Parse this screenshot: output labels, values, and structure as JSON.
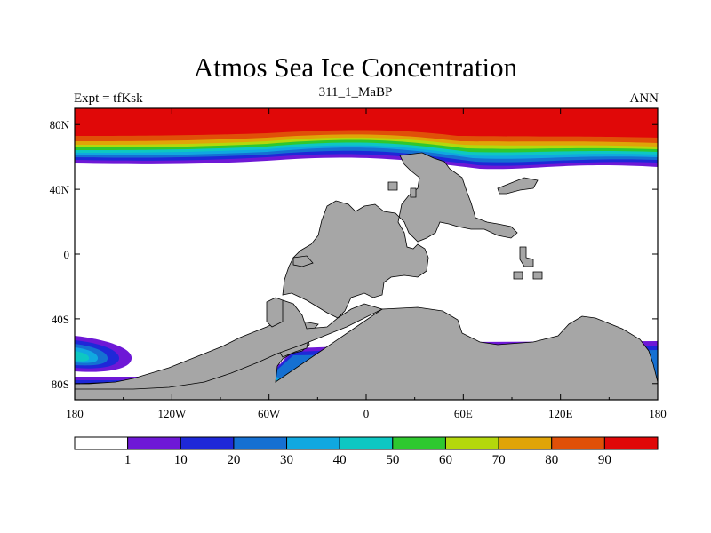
{
  "title": "Atmos Sea Ice Concentration",
  "subtitle": "311_1_MaBP",
  "left_label": "Expt = tfKsk",
  "right_label": "ANN",
  "x_ticks": [
    {
      "value": -180,
      "label": "180"
    },
    {
      "value": -120,
      "label": "120W"
    },
    {
      "value": -60,
      "label": "60W"
    },
    {
      "value": 0,
      "label": "0"
    },
    {
      "value": 60,
      "label": "60E"
    },
    {
      "value": 120,
      "label": "120E"
    },
    {
      "value": 180,
      "label": "180"
    }
  ],
  "y_ticks": [
    {
      "value": 80,
      "label": "80N"
    },
    {
      "value": 40,
      "label": "40N"
    },
    {
      "value": 0,
      "label": "0"
    },
    {
      "value": -40,
      "label": "40S"
    },
    {
      "value": -80,
      "label": "80S"
    }
  ],
  "colors": {
    "land": "#a6a6a6",
    "ocean": "#ffffff"
  },
  "colorbar": {
    "levels": [
      "1",
      "10",
      "20",
      "30",
      "40",
      "50",
      "60",
      "70",
      "80",
      "90"
    ],
    "colors": [
      "#ffffff",
      "#6e18d6",
      "#1e28d8",
      "#1570d2",
      "#10a8e0",
      "#0dc7c3",
      "#2ec82f",
      "#b4d80c",
      "#e0a408",
      "#e05008",
      "#e00808"
    ]
  },
  "chart_data": {
    "type": "map",
    "title": "Atmos Sea Ice Concentration",
    "subtitle": "311_1_MaBP",
    "variable": "sea ice concentration",
    "units": "%",
    "experiment": "tfKsk",
    "season": "ANN",
    "lon_range": [
      -180,
      180
    ],
    "lat_range": [
      -90,
      90
    ],
    "contour_levels": [
      1,
      10,
      20,
      30,
      40,
      50,
      60,
      70,
      80,
      90
    ],
    "features": [
      "Arctic ice band 90 percent poleward of about 70N",
      "Antarctic coastal sea ice",
      "Pacific sector sea ice tongue near 60S"
    ]
  }
}
